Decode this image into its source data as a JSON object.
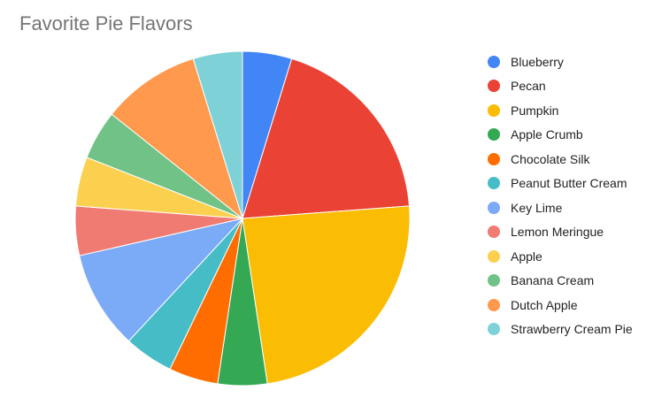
{
  "chart_data": {
    "type": "pie",
    "title": "Favorite Pie Flavors",
    "legend_position": "right",
    "start_angle_deg": 0,
    "slices": [
      {
        "label": "Blueberry",
        "value": 1,
        "color": "#4285f4"
      },
      {
        "label": "Pecan",
        "value": 4,
        "color": "#ea4335"
      },
      {
        "label": "Pumpkin",
        "value": 5,
        "color": "#fbbc04"
      },
      {
        "label": "Apple Crumb",
        "value": 1,
        "color": "#34a853"
      },
      {
        "label": "Chocolate Silk",
        "value": 1,
        "color": "#ff6d01"
      },
      {
        "label": "Peanut Butter Cream",
        "value": 1,
        "color": "#46bdc6"
      },
      {
        "label": "Key Lime",
        "value": 2,
        "color": "#7baaf7"
      },
      {
        "label": "Lemon Meringue",
        "value": 1,
        "color": "#f07b72"
      },
      {
        "label": "Apple",
        "value": 1,
        "color": "#fcd04f"
      },
      {
        "label": "Banana Cream",
        "value": 1,
        "color": "#71c287"
      },
      {
        "label": "Dutch Apple",
        "value": 2,
        "color": "#ff994d"
      },
      {
        "label": "Strawberry Cream Pie",
        "value": 1,
        "color": "#7ed1d7"
      }
    ]
  }
}
